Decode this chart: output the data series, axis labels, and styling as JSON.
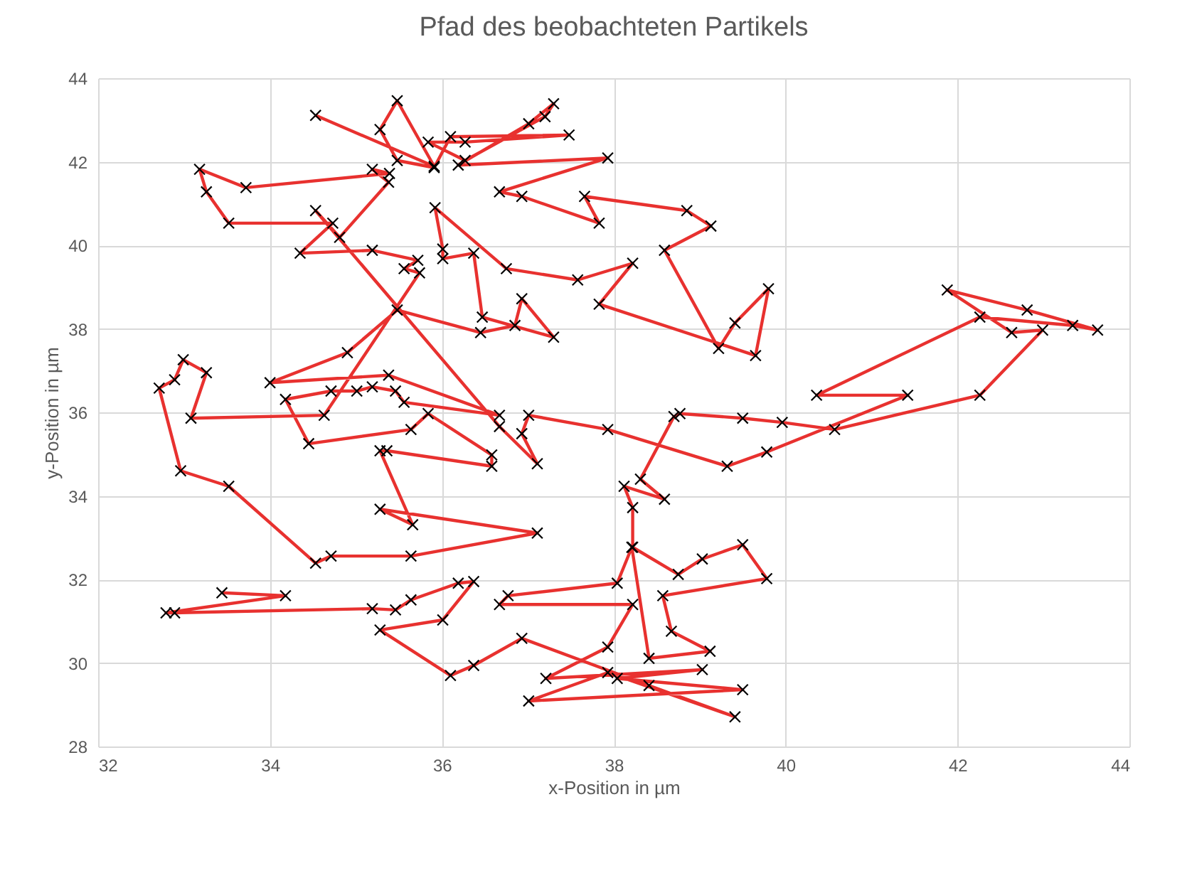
{
  "chart_data": {
    "type": "line",
    "title": "Pfad des beobachteten Partikels",
    "xlabel": "x-Position in µm",
    "ylabel": "y-Position in µm",
    "xlim": [
      32,
      44
    ],
    "xticks": [
      32,
      34,
      36,
      38,
      40,
      42,
      44
    ],
    "ylim": [
      28,
      44
    ],
    "yticks": [
      28,
      30,
      32,
      34,
      36,
      38,
      40,
      42,
      44
    ],
    "grid": true,
    "marker": "cross",
    "line_style": "solid",
    "series": [
      {
        "color": "#e8312f",
        "x": [
          34.53,
          35.91,
          35.48,
          35.28,
          35.48,
          35.91,
          36.1,
          37.48,
          36.27,
          35.84,
          36.27,
          37.2,
          37.3,
          37.01,
          36.19,
          37.93,
          36.67,
          36.93,
          37.83,
          37.66,
          38.85,
          39.13,
          38.59,
          39.22,
          39.41,
          39.8,
          39.65,
          37.83,
          38.22,
          37.58,
          36.75,
          35.92,
          36.01,
          36.01,
          36.37,
          36.47,
          37.3,
          36.93,
          36.85,
          36.45,
          35.48,
          34.9,
          34.0,
          35.38,
          36.67,
          35.56,
          35.46,
          35.19,
          35.01,
          34.71,
          34.18,
          34.45,
          35.64,
          35.84,
          36.58,
          36.58,
          35.36,
          35.28,
          35.66,
          35.28,
          37.11,
          35.64,
          34.71,
          34.53,
          33.52,
          32.96,
          32.71,
          32.89,
          32.99,
          33.26,
          33.08,
          34.63,
          35.74,
          35.56,
          35.72,
          35.19,
          34.35,
          34.73,
          33.52,
          33.26,
          33.18,
          33.72,
          35.39,
          35.19,
          35.38,
          34.81,
          34.53,
          36.67,
          37.11,
          36.93,
          37.01,
          37.93,
          39.32,
          39.78,
          41.42,
          40.36,
          42.26,
          43.34,
          43.63,
          42.81,
          41.88,
          42.63,
          42.99,
          42.26,
          40.57,
          39.96,
          39.5,
          38.77,
          38.7,
          38.31,
          38.59,
          38.12,
          38.22,
          38.22,
          38.75,
          39.03,
          39.5,
          39.78,
          38.57,
          38.67,
          39.12,
          38.41,
          38.21,
          38.04,
          36.77,
          36.67,
          38.22,
          37.93,
          37.21,
          39.03,
          38.04,
          39.5,
          37.01,
          37.93,
          39.41,
          38.41,
          36.93,
          36.37,
          36.1,
          35.28,
          36.01,
          36.37,
          36.19,
          35.64,
          35.46,
          35.19,
          32.89,
          32.79,
          34.18,
          33.44
        ],
        "values": [
          43.11,
          41.89,
          43.46,
          42.77,
          42.03,
          41.86,
          42.6,
          42.64,
          42.47,
          42.47,
          42.03,
          43.08,
          43.39,
          42.91,
          41.92,
          42.09,
          41.28,
          41.17,
          40.53,
          41.17,
          40.83,
          40.46,
          39.88,
          37.53,
          38.14,
          38.96,
          37.36,
          38.59,
          39.57,
          39.17,
          39.44,
          40.9,
          39.91,
          39.68,
          39.81,
          38.28,
          37.8,
          38.72,
          38.08,
          37.91,
          38.45,
          37.43,
          36.71,
          36.89,
          35.93,
          36.24,
          36.51,
          36.61,
          36.51,
          36.51,
          36.31,
          35.25,
          35.59,
          35.97,
          34.98,
          34.71,
          35.08,
          35.08,
          33.31,
          33.68,
          33.11,
          32.56,
          32.56,
          32.39,
          34.23,
          34.6,
          36.58,
          36.78,
          37.26,
          36.95,
          35.86,
          35.93,
          39.34,
          39.44,
          39.64,
          39.88,
          39.81,
          40.53,
          40.53,
          41.28,
          41.82,
          41.38,
          41.72,
          41.82,
          41.51,
          40.19,
          40.83,
          35.66,
          34.77,
          35.49,
          35.93,
          35.59,
          34.71,
          35.05,
          36.41,
          36.41,
          38.28,
          38.08,
          37.97,
          38.45,
          38.93,
          37.91,
          37.97,
          36.41,
          35.59,
          35.76,
          35.86,
          35.97,
          35.9,
          34.4,
          33.92,
          34.23,
          33.72,
          32.77,
          32.12,
          32.49,
          32.83,
          32.02,
          31.61,
          30.76,
          30.28,
          30.11,
          32.77,
          31.91,
          31.61,
          31.4,
          31.4,
          30.38,
          29.63,
          29.84,
          29.63,
          29.36,
          29.09,
          29.77,
          28.71,
          29.46,
          30.59,
          29.94,
          29.7,
          30.79,
          31.03,
          31.95,
          31.91,
          31.51,
          31.27,
          31.3,
          31.2,
          31.2,
          31.61,
          31.68
        ]
      }
    ]
  }
}
